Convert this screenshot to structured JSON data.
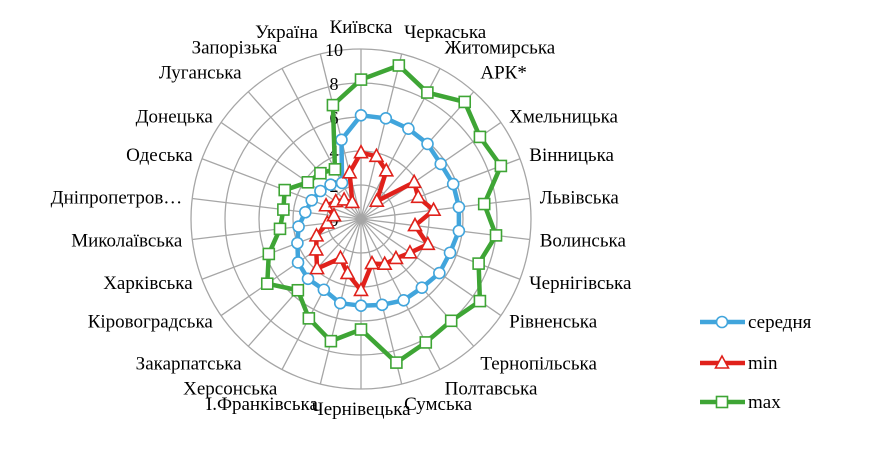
{
  "chart_data": {
    "type": "radar",
    "categories": [
      "Київска",
      "Черкаська",
      "Житомирська",
      "АРК*",
      "Хмельницька",
      "Вінницька",
      "Львівська",
      "Волинська",
      "Чернігівська",
      "Рівненська",
      "Тернопільська",
      "Полтавська",
      "Сумська",
      "Чернівецька",
      "І.Франківська",
      "Херсонська",
      "Закарпатська",
      "Кіровоградська",
      "Харківська",
      "Миколаївська",
      "Дніпропетров…",
      "Одеська",
      "Донецька",
      "Луганська",
      "Запорізька",
      "Україна"
    ],
    "rlim": [
      0,
      10
    ],
    "ticks": [
      "0",
      "2",
      "4",
      "6",
      "8",
      "10"
    ],
    "grid": true,
    "legend_position": "right",
    "series": [
      {
        "name": "середня",
        "color": "#41a5dc",
        "marker": "circle",
        "values": [
          6.1,
          6.1,
          6.0,
          5.9,
          5.7,
          5.8,
          5.8,
          5.8,
          5.6,
          5.6,
          5.4,
          5.4,
          5.2,
          5.1,
          5.1,
          4.7,
          4.7,
          4.5,
          4.0,
          3.7,
          3.3,
          3.1,
          2.9,
          2.7,
          2.4,
          4.8
        ]
      },
      {
        "name": "min",
        "color": "#e0211b",
        "marker": "triangle",
        "values": [
          3.9,
          3.8,
          3.2,
          1.4,
          3.8,
          3.6,
          4.3,
          3.2,
          4.2,
          3.5,
          3.1,
          3.0,
          2.7,
          4.2,
          3.3,
          2.6,
          3.9,
          3.2,
          2.8,
          2.0,
          1.6,
          2.2,
          1.8,
          1.5,
          1.1,
          2.8
        ]
      },
      {
        "name": "max",
        "color": "#3ea535",
        "marker": "square",
        "values": [
          8.2,
          9.3,
          8.4,
          9.2,
          8.5,
          8.8,
          7.3,
          8.0,
          7.4,
          8.5,
          8.0,
          8.2,
          8.7,
          6.5,
          7.4,
          6.6,
          5.6,
          6.7,
          5.8,
          4.8,
          4.6,
          4.8,
          3.8,
          3.6,
          3.3,
          6.9
        ]
      }
    ]
  }
}
